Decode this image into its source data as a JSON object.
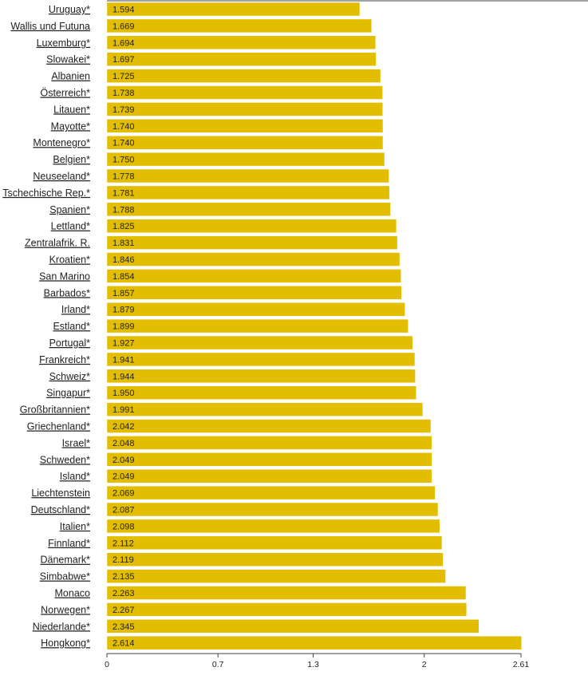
{
  "chart_data": {
    "type": "bar",
    "orientation": "horizontal",
    "categories": [
      "Uruguay*",
      "Wallis und Futuna",
      "Luxemburg*",
      "Slowakei*",
      "Albanien",
      "Österreich*",
      "Litauen*",
      "Mayotte*",
      "Montenegro*",
      "Belgien*",
      "Neuseeland*",
      "Tschechische Rep.*",
      "Spanien*",
      "Lettland*",
      "Zentralafrik. R.",
      "Kroatien*",
      "San Marino",
      "Barbados*",
      "Irland*",
      "Estland*",
      "Portugal*",
      "Frankreich*",
      "Schweiz*",
      "Singapur*",
      "Großbritannien*",
      "Griechenland*",
      "Israel*",
      "Schweden*",
      "Island*",
      "Liechtenstein",
      "Deutschland*",
      "Italien*",
      "Finnland*",
      "Dänemark*",
      "Simbabwe*",
      "Monaco",
      "Norwegen*",
      "Niederlande*",
      "Hongkong*"
    ],
    "values": [
      1.594,
      1.669,
      1.694,
      1.697,
      1.725,
      1.738,
      1.739,
      1.74,
      1.74,
      1.75,
      1.778,
      1.781,
      1.788,
      1.825,
      1.831,
      1.846,
      1.854,
      1.857,
      1.879,
      1.899,
      1.927,
      1.941,
      1.944,
      1.95,
      1.991,
      2.042,
      2.048,
      2.049,
      2.049,
      2.069,
      2.087,
      2.098,
      2.112,
      2.119,
      2.135,
      2.263,
      2.267,
      2.345,
      2.614
    ],
    "value_labels": [
      "1.594",
      "1.669",
      "1.694",
      "1.697",
      "1.725",
      "1.738",
      "1.739",
      "1.740",
      "1.740",
      "1.750",
      "1.778",
      "1.781",
      "1.788",
      "1.825",
      "1.831",
      "1.846",
      "1.854",
      "1.857",
      "1.879",
      "1.899",
      "1.927",
      "1.941",
      "1.944",
      "1.950",
      "1.991",
      "2.042",
      "2.048",
      "2.049",
      "2.049",
      "2.069",
      "2.087",
      "2.098",
      "2.112",
      "2.119",
      "2.135",
      "2.263",
      "2.267",
      "2.345",
      "2.614"
    ],
    "x_ticks": [
      0,
      0.7,
      1.3,
      2,
      2.61
    ],
    "x_tick_labels": [
      "0",
      "0.7",
      "1.3",
      "2",
      "2.61"
    ],
    "xlim": [
      0,
      2.61
    ],
    "title": "",
    "xlabel": "",
    "ylabel": "",
    "grid": false,
    "bar_color": "#e3bd00",
    "bar_edge_color": "#ffffff"
  }
}
